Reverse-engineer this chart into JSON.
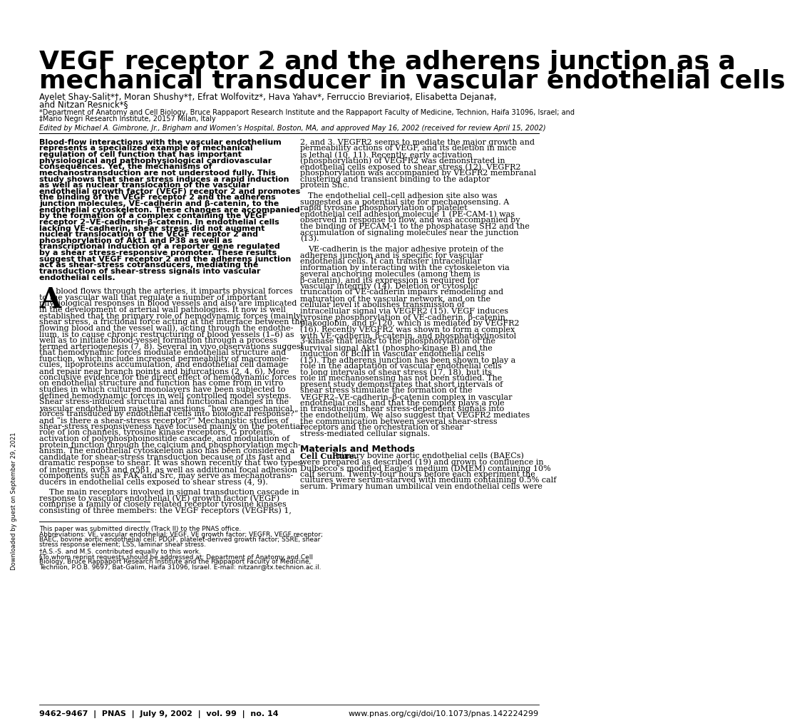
{
  "bg_color": "#ffffff",
  "title_line1": "VEGF receptor 2 and the adherens junction as a",
  "title_line2": "mechanical transducer in vascular endothelial cells",
  "authors": "Ayelet Shay-Salit*†, Moran Shushy*†, Efrat Wolfovitz*, Hava Yahav*, Ferruccio Breviario‡, Elisabetta Dejana‡,",
  "authors2": "and Nitzan Resnick*§",
  "affiliation1": "*Department of Anatomy and Cell Biology, Bruce Rappaport Research Institute and the Rappaport Faculty of Medicine, Technion, Haifa 31096, Israel; and",
  "affiliation2": "‡Mario Negri Research Institute, 20157 Milan, Italy",
  "edited_by": "Edited by Michael A. Gimbrone, Jr., Brigham and Women’s Hospital, Boston, MA, and approved May 16, 2002 (received for review April 15, 2002)",
  "abstract_bold": "Blood-flow interactions with the vascular endothelium represents a specialized example of mechanical regulation of cell function that has important physiological and pathophysiological cardiovascular consequences. Yet, the mechanisms of mechanostransduction are not understood fully. This study shows that shear stress induces a rapid induction as well as nuclear translocation of the vascular endothelial growth factor (VEGF) receptor 2 and promotes the binding of the VEGF receptor 2 and the adherens junction molecules, VE-cadherin and β-catenin, to the endothelial cytoskeleton. These changes are accompanied by the formation of a complex containing the VEGF receptor 2–VE-cadherin–β-catenin. In endothelial cells lacking VE-cadherin, shear stress did not augment nuclear translocation of the VEGF receptor 2 and phosphorylation of Akt1 and P38 as well as transcriptional induction of a reporter gene regulated by a shear stress-responsive promoter. These results suggest that VEGF receptor 2 and the adherens junction act as shear-stress cotransducers, mediating the transduction of shear-stress signals into vascular endothelial cells.",
  "col2_para1": "2, and 3. VEGFR2 seems to mediate the major growth and permeability actions of VEGF, and its deletion in mice is lethal (10, 11). Recently, early activation (phosphorylation) of VEGFR2 was demonstrated in endothelial cells exposed to shear stress (12). VEGFR2 phosphorylation was accompanied by VEGFR2 membranal clustering and transient binding to the adaptor protein Shc.",
  "col2_para2": "The endothelial cell–cell adhesion site also was suggested as a potential site for mechanosensing. A rapid tyrosine phosphorylation of platelet endothelial cell adhesion molecule 1 (PE-CAM-1) was observed in response to flow, and was accompanied by the binding of PECAM-1 to the phosphatase SH2 and the accumulation of signaling molecules near the junction (13).",
  "col2_para3": "VE-cadherin is the major adhesive protein of the adherens junction and is specific for vascular endothelial cells. It can transfer intracellular information by interacting with the cytoskeleton via several anchoring molecules (among them is β-catenin), and its expression is required for vascular integrity (14). Deletion or cytosolic truncation of VE-cadherin impairs remodeling and maturation of the vascular network, and on the cellular level it abolishes transmission of intracellular signal via VEGFR2 (15). VEGF induces tyrosine phosphorylation of VE-cadherin, β-catenin, plakoglobin, and p-120, which is mediated by VEGFR2 (16). Recently VEGFR2 was shown to form a complex with VE-cadherin, β-catenin, and phosphatidylinositol 3-kinase that leads to the phosphorylation of the survival signal Akt1 (phospho-kinase B) and the induction of BclII in vascular endothelial cells (15). The adherens junction has been shown to play a role in the adaptation of vascular endothelial cells to long intervals of shear stress (17, 18), but its role in mechanosensing has not been studied. The present study demonstrates that short intervals of shear stress stimulate the formation of the VEGFR2–VE-cadherin–β-catenin complex in vascular endothelial cells, and that the complex plays a role in transducing shear stress-dependent signals into the endothelium. We also suggest that VEGFR2 mediates the communication between several shear-stress receptors and the orchestration of shear stress-mediated cellular signals.",
  "methods_title": "Materials and Methods",
  "methods_bold_label": "Cell Culture.",
  "methods_text_lines": [
    "Primary bovine aortic endothelial cells (BAECs)",
    "were prepared as described (19) and grown to confluence in",
    "Dulbecco’s modified Eagle’s medium (DMEM) containing 10%",
    "calf serum. Twenty-four hours before each experiment the",
    "cultures were serum-starved with medium containing 0.5% calf",
    "serum. Primary human umbilical vein endothelial cells were"
  ],
  "col1_body_lines": [
    "s blood flows through the arteries, it imparts physical forces",
    "to the vascular wall that regulate a number of important",
    "physiological responses in blood vessels and also are implicated",
    "in the development of arterial wall pathologies. It now is well",
    "established that the primary role of hemodynamic forces (mainly",
    "shear stress, a frictional force acting at the interface between the",
    "flowing blood and the vessel wall), acting through the endothe-",
    "lium, is to cause chronic restructuring of blood vessels (1–6) as",
    "well as to initiate blood-vessel formation through a process",
    "termed arteriogenesis (7, 8). Several in vivo observations suggest",
    "that hemodynamic forces modulate endothelial structure and",
    "function, which include increased permeability of macromole-",
    "cules, lipoproteins accumulation, and endothelial cell damage",
    "and repair near branch points and bifurcations (2, 4, 6). More",
    "conclusive evidence for the direct effect of hemodynamic forces",
    "on endothelial structure and function has come from in vitro",
    "studies in which cultured monolayers have been subjected to",
    "defined hemodynamic forces in well controlled model systems.",
    "Shear stress-induced structural and functional changes in the",
    "vascular endothelium raise the questions “how are mechanical",
    "forces transduced by endothelial cells into biological response?”",
    "and “is there a shear-stress receptor?” Mechanistic studies of",
    "shear-stress responsiveness have focused mainly on the potential",
    "role of ion channels, tyrosine kinase receptors, G proteins,",
    "activation of polyphosphoinositide cascade, and modulation of",
    "protein function through the calcium and phosphorylation mech-",
    "anism. The endothelial cytoskeleton also has been considered a",
    "candidate for shear-stress transduction because of its fast and",
    "dramatic response to shear. It was shown recently that two types",
    "of integrins, αvβ3 and α5β1, as well as additional focal adhesion",
    "components such as FAK and Src, may serve as mechanotrans-",
    "ducers in endothelial cells exposed to shear stress (4, 9)."
  ],
  "col1_para2_lines": [
    "The main receptors involved in signal transduction cascade in",
    "response to vascular endothelial (VE) growth factor (VEGF)",
    "comprise a family of closely related receptor tyrosine kinases",
    "consisting of three members: the VEGF receptors (VEGFRs) 1,"
  ],
  "footnote_line": "This paper was submitted directly (Track II) to the PNAS office.",
  "abbrev_lines": [
    "Abbreviations: VE, vascular endothelial; VEGF, VE growth factor; VEGFR, VEGF receptor;",
    "BAEC, bovine aortic endothelial cell; PDGF, platelet-derived growth factor; SSRE, shear",
    "stress response element; LSS, laminar shear stress."
  ],
  "contrib_line": "†A.S.-S. and M.S. contributed equally to this work.",
  "reprint_lines": [
    "§To whom reprint requests should be addressed at: Department of Anatomy and Cell",
    "Biology, Bruce Rappaport Research Institute and the Rappaport Faculty of Medicine,",
    "Technion, P.O.B. 9697, Bat-Galim, Haifa 31096, Israel. E-mail: nitzanr@tx.technion.ac.il."
  ],
  "footer_left": "9462–9467  |  PNAS  |  July 9, 2002  |  vol. 99  |  no. 14",
  "footer_right": "www.pnas.org/cgi/doi/10.1073/pnas.142224299",
  "side_text": "Downloaded by guest on September 29, 2021"
}
